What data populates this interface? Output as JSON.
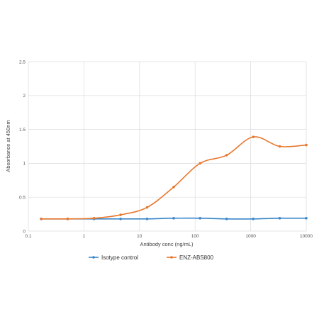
{
  "chart_data": {
    "type": "line",
    "title": "",
    "xlabel": "Antibody conc (ng/mL)",
    "ylabel": "Absorbance at 450nm",
    "x_scale": "log",
    "xlim": [
      0.1,
      10000
    ],
    "ylim": [
      0,
      2.5
    ],
    "x_ticks": [
      0.1,
      1,
      10,
      100,
      1000,
      10000
    ],
    "x_tick_labels": [
      "0.1",
      "1",
      "10",
      "100",
      "1000",
      "10000"
    ],
    "y_ticks": [
      0,
      0.5,
      1,
      1.5,
      2,
      2.5
    ],
    "y_tick_labels": [
      "0",
      "0.5",
      "1",
      "1.5",
      "2",
      "2.5"
    ],
    "grid": true,
    "legend_position": "bottom",
    "x": [
      0.17,
      0.51,
      1.52,
      4.57,
      13.7,
      41.2,
      123,
      370,
      1111,
      3333,
      10000
    ],
    "series": [
      {
        "name": "Isotype control",
        "color": "#3a87c8",
        "values": [
          0.18,
          0.18,
          0.18,
          0.18,
          0.18,
          0.19,
          0.19,
          0.18,
          0.18,
          0.19,
          0.19
        ]
      },
      {
        "name": "ENZ-ABS800",
        "color": "#e8772e",
        "values": [
          0.18,
          0.18,
          0.19,
          0.24,
          0.35,
          0.65,
          1.0,
          1.12,
          1.39,
          1.25,
          1.27
        ]
      }
    ]
  }
}
